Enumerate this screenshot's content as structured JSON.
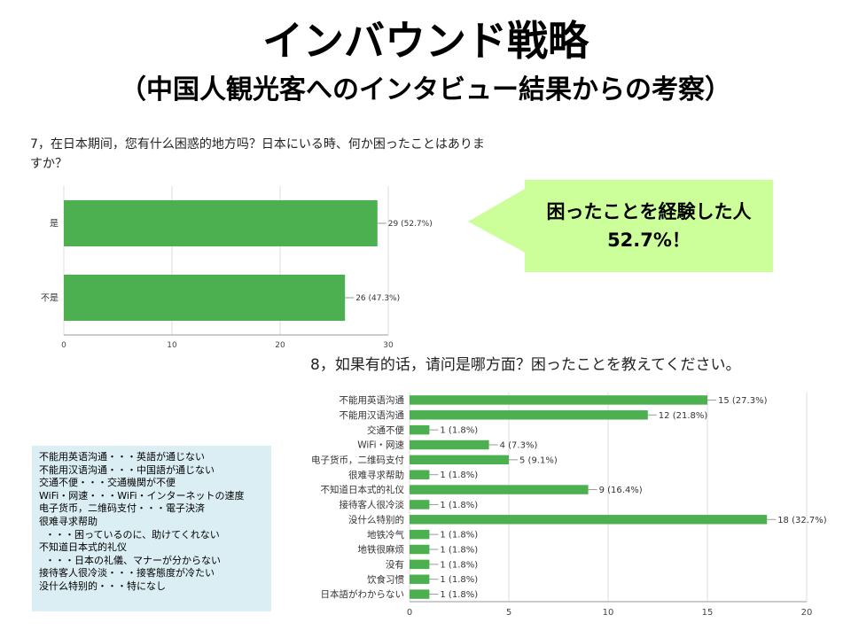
{
  "slide": {
    "title": "インバウンド戦略",
    "subtitle": "（中国人観光客へのインタビュー結果からの考察）"
  },
  "q7": {
    "question": "7，在日本期间，您有什么困惑的地方吗？日本にいる時、何か困ったことはありますか？"
  },
  "q8": {
    "question": "8，如果有的话，请问是哪方面？困ったことを教えてください。"
  },
  "callout": {
    "line1": "困ったことを経験した人",
    "line2": "52.7%！",
    "color": "#ccff99"
  },
  "notes": {
    "lines": [
      "不能用英语沟通・・・英語が通じない",
      "不能用汉语沟通・・・中国語が通じない",
      "交通不便・・・交通機関が不便",
      "WiFi・网速・・・WiFi・インターネットの速度",
      "电子货币，二维码支付・・・電子決済",
      "很难寻求帮助",
      "  ・・・困っているのに、助けてくれない",
      "不知道日本式的礼仪",
      "  ・・・日本の礼儀、マナーが分からない",
      "接待客人很冷淡・・・接客態度が冷たい",
      "没什么特别的・・・特になし"
    ],
    "background": "#dbeef4"
  },
  "chart_data": [
    {
      "type": "bar",
      "orientation": "horizontal",
      "categories": [
        "是",
        "不是"
      ],
      "values": [
        29,
        26
      ],
      "data_labels": [
        "29 (52.7%)",
        "26 (47.3%)"
      ],
      "xlim": [
        0,
        30
      ],
      "xticks": [
        0,
        10,
        20,
        30
      ],
      "color": "#4caf50",
      "grid": true
    },
    {
      "type": "bar",
      "orientation": "horizontal",
      "categories": [
        "不能用英语沟通",
        "不能用汉语沟通",
        "交通不便",
        "WiFi・网速",
        "电子货币，二维码支付",
        "很难寻求帮助",
        "不知道日本式的礼仪",
        "接待客人很冷淡",
        "没什么特别的",
        "地铁冷气",
        "地铁很麻烦",
        "没有",
        "饮食习惯",
        "日本語がわからない"
      ],
      "values": [
        15,
        12,
        1,
        4,
        5,
        1,
        9,
        1,
        18,
        1,
        1,
        1,
        1,
        1
      ],
      "data_labels": [
        "15 (27.3%)",
        "12 (21.8%)",
        "1 (1.8%)",
        "4 (7.3%)",
        "5 (9.1%)",
        "1 (1.8%)",
        "9 (16.4%)",
        "1 (1.8%)",
        "18 (32.7%)",
        "1 (1.8%)",
        "1 (1.8%)",
        "1 (1.8%)",
        "1 (1.8%)",
        "1 (1.8%)"
      ],
      "xlim": [
        0,
        20
      ],
      "xticks": [
        0,
        5,
        10,
        15,
        20
      ],
      "color": "#4caf50",
      "grid": true
    }
  ]
}
